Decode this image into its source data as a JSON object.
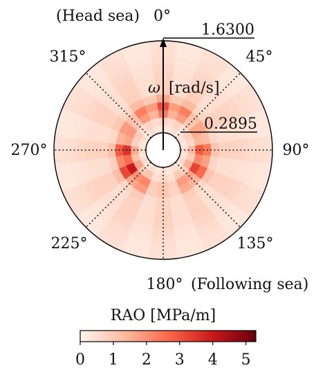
{
  "chart_data": {
    "type": "heatmap",
    "subtype": "polar",
    "direction_labels": [
      {
        "angle": 0,
        "text": "0°",
        "prefix": "(Head sea)"
      },
      {
        "angle": 45,
        "text": "45°"
      },
      {
        "angle": 90,
        "text": "90°"
      },
      {
        "angle": 135,
        "text": "135°"
      },
      {
        "angle": 180,
        "text": "180°",
        "suffix": "(Following sea)"
      },
      {
        "angle": 225,
        "text": "225°"
      },
      {
        "angle": 270,
        "text": "270°"
      },
      {
        "angle": 315,
        "text": "315°"
      }
    ],
    "radial_axis": {
      "label_symbol": "ω",
      "label_unit": "[rad/s]",
      "min": 0.2895,
      "max": 1.63,
      "min_label": "0.2895",
      "max_label": "1.6300"
    },
    "colorbar": {
      "label": "RAO [MPa/m]",
      "range": [
        0,
        5.3
      ],
      "ticks": [
        {
          "v": 0,
          "label": "0"
        },
        {
          "v": 1,
          "label": "1"
        },
        {
          "v": 2,
          "label": "2"
        },
        {
          "v": 3,
          "label": "3"
        },
        {
          "v": 4,
          "label": "4"
        },
        {
          "v": 5,
          "label": "5"
        }
      ],
      "colors": [
        "#fff5f0",
        "#fcbba1",
        "#fb6a4a",
        "#cb181d",
        "#67000d"
      ]
    },
    "grid": "dotted lines every 45°",
    "direction_step_deg": 15,
    "radial_bins": 12,
    "approx_peaks": [
      {
        "direction_deg": 0,
        "omega": 0.65,
        "rao": 2.6
      },
      {
        "direction_deg": 110,
        "omega": 0.6,
        "rao": 3.0
      },
      {
        "direction_deg": 250,
        "omega": 0.6,
        "rao": 3.8
      }
    ]
  }
}
